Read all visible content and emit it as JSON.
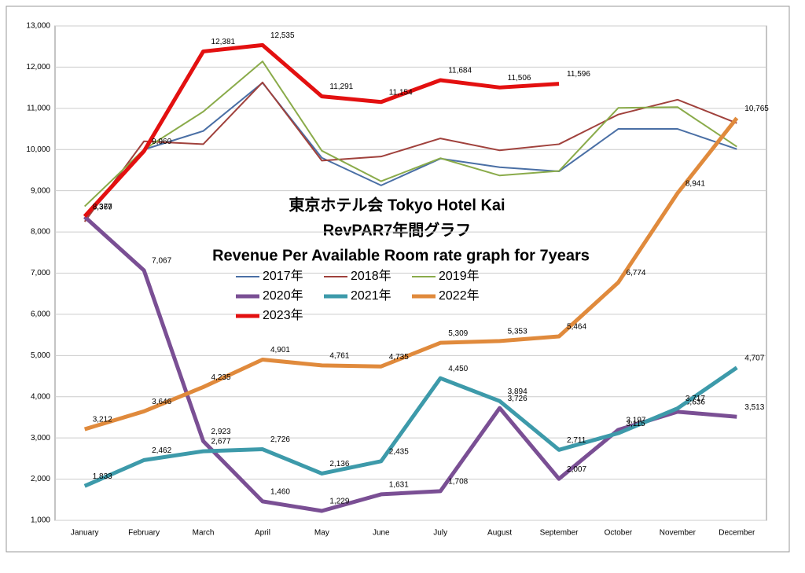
{
  "chart_data": {
    "type": "line",
    "title": [
      "東京ホテル会  Tokyo Hotel Kai",
      "RevPAR7年間グラフ",
      "Revenue Per Available Room rate graph for 7years"
    ],
    "categories": [
      "January",
      "February",
      "March",
      "April",
      "May",
      "June",
      "July",
      "August",
      "September",
      "October",
      "November",
      "December"
    ],
    "ylim": [
      1000,
      13000
    ],
    "yticks": [
      {
        "value": 1000,
        "label": "1,000"
      },
      {
        "value": 2000,
        "label": "2,000"
      },
      {
        "value": 3000,
        "label": "3,000"
      },
      {
        "value": 4000,
        "label": "4,000"
      },
      {
        "value": 5000,
        "label": "5,000"
      },
      {
        "value": 6000,
        "label": "6,000"
      },
      {
        "value": 7000,
        "label": "7,000"
      },
      {
        "value": 8000,
        "label": "8,000"
      },
      {
        "value": 9000,
        "label": "9,000"
      },
      {
        "value": 10000,
        "label": "10,000"
      },
      {
        "value": 11000,
        "label": "11,000"
      },
      {
        "value": 12000,
        "label": "12,000"
      },
      {
        "value": 13000,
        "label": "13,000"
      }
    ],
    "grid": true,
    "series": [
      {
        "name": "2017年",
        "color": "#4a6fa5",
        "values": [
          8300,
          10000,
          10450,
          11620,
          9800,
          9130,
          9780,
          9570,
          9470,
          10500,
          10500,
          10010
        ]
      },
      {
        "name": "2018年",
        "color": "#a0413c",
        "values": [
          8250,
          10200,
          10130,
          11630,
          9730,
          9830,
          10270,
          9980,
          10130,
          10850,
          11210,
          10640
        ]
      },
      {
        "name": "2019年",
        "color": "#8aab4a",
        "values": [
          8620,
          10000,
          10920,
          12140,
          9970,
          9230,
          9790,
          9370,
          9480,
          11010,
          11030,
          10070
        ]
      },
      {
        "name": "2020年",
        "color": "#7a4f94",
        "values": [
          8369,
          7067,
          2923,
          1460,
          1229,
          1631,
          1708,
          3726,
          2007,
          3197,
          3636,
          3513
        ],
        "value_labels": [
          "8,369",
          "7,067",
          "2,923",
          "1,460",
          "1,229",
          "1,631",
          "1,708",
          "3,726",
          "2,007",
          "3,197",
          "3,636",
          "3,513"
        ]
      },
      {
        "name": "2021年",
        "color": "#3d9aaa",
        "values": [
          1833,
          2462,
          2677,
          2726,
          2136,
          2435,
          4450,
          3894,
          2711,
          3115,
          3717,
          4707
        ],
        "value_labels": [
          "1,833",
          "2,462",
          "2,677",
          "2,726",
          "2,136",
          "2,435",
          "4,450",
          "3,894",
          "2,711",
          "3,115",
          "3,717",
          "4,707"
        ]
      },
      {
        "name": "2022年",
        "color": "#e08a3c",
        "values": [
          3212,
          3646,
          4235,
          4901,
          4761,
          4735,
          5309,
          5353,
          5464,
          6774,
          8941,
          10765
        ],
        "value_labels": [
          "3,212",
          "3,646",
          "4,235",
          "4,901",
          "4,761",
          "4,735",
          "5,309",
          "5,353",
          "5,464",
          "6,774",
          "8,941",
          "10,765"
        ]
      },
      {
        "name": "2023年",
        "color": "#e31010",
        "values": [
          8377,
          9960,
          12381,
          12535,
          11291,
          11154,
          11684,
          11506,
          11596,
          null,
          null,
          null
        ],
        "value_labels": [
          "8,377",
          "9,960",
          "12,381",
          "12,535",
          "11,291",
          "11,154",
          "11,684",
          "11,506",
          "11,596",
          null,
          null,
          null
        ]
      }
    ]
  }
}
